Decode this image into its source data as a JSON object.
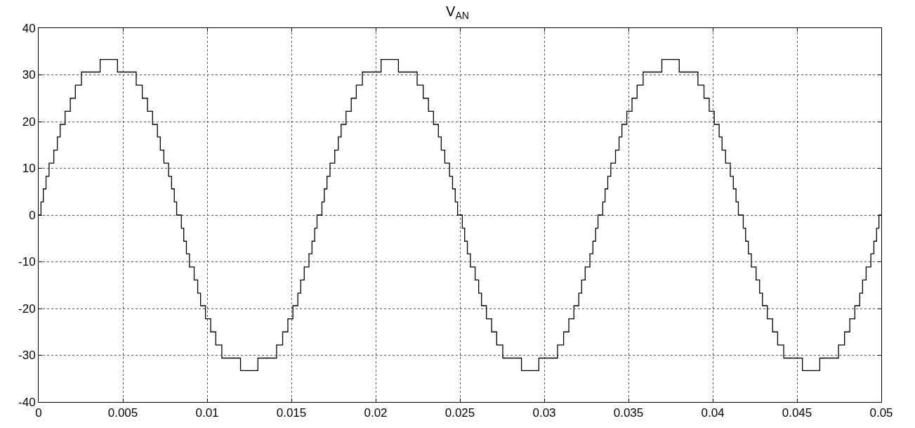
{
  "chart_data": {
    "type": "step",
    "title": "V$_{AN}$",
    "x": [
      0,
      0.00014,
      0.00028,
      0.00044,
      0.00062,
      0.0009,
      0.00111,
      0.00128,
      0.00157,
      0.00188,
      0.00218,
      0.00254,
      0.00365,
      0.00468,
      0.00579,
      0.00615,
      0.00646,
      0.00676,
      0.00705,
      0.00722,
      0.00743,
      0.00771,
      0.00789,
      0.00805,
      0.00819,
      0.00847,
      0.00861,
      0.00877,
      0.00895,
      0.00923,
      0.00944,
      0.00961,
      0.0099,
      0.01021,
      0.01051,
      0.01087,
      0.01198,
      0.01301,
      0.01412,
      0.01448,
      0.01479,
      0.01509,
      0.01538,
      0.01555,
      0.01576,
      0.01604,
      0.01622,
      0.01638,
      0.01652,
      0.01681,
      0.01695,
      0.01711,
      0.01729,
      0.01757,
      0.01778,
      0.01795,
      0.01824,
      0.01855,
      0.01885,
      0.01921,
      0.02032,
      0.02135,
      0.02246,
      0.02282,
      0.02313,
      0.02343,
      0.02372,
      0.02389,
      0.0241,
      0.02438,
      0.02456,
      0.02472,
      0.02486,
      0.02514,
      0.02528,
      0.02544,
      0.02562,
      0.0259,
      0.02611,
      0.02628,
      0.02657,
      0.02688,
      0.02718,
      0.02754,
      0.02865,
      0.02968,
      0.03079,
      0.03115,
      0.03146,
      0.03176,
      0.03205,
      0.03222,
      0.03243,
      0.03271,
      0.03289,
      0.03305,
      0.03319,
      0.03347,
      0.03361,
      0.03377,
      0.03395,
      0.03423,
      0.03444,
      0.03461,
      0.0349,
      0.03521,
      0.03551,
      0.03587,
      0.03698,
      0.03801,
      0.03912,
      0.03948,
      0.03979,
      0.04009,
      0.04038,
      0.04055,
      0.04076,
      0.04104,
      0.04122,
      0.04138,
      0.04152,
      0.04181,
      0.04195,
      0.04211,
      0.04229,
      0.04257,
      0.04278,
      0.04295,
      0.04324,
      0.04355,
      0.04385,
      0.04421,
      0.04532,
      0.04635,
      0.04746,
      0.04782,
      0.04813,
      0.04843,
      0.04872,
      0.04889,
      0.0491,
      0.04938,
      0.04956,
      0.04972,
      0.04986,
      0.05
    ],
    "series": [
      {
        "color": "#000000",
        "values": [
          0,
          2.8,
          5.6,
          8.3,
          11.1,
          13.9,
          16.7,
          19.4,
          22.2,
          25,
          27.8,
          30.6,
          33.3,
          30.6,
          27.8,
          25,
          22.2,
          19.4,
          16.7,
          13.9,
          11.1,
          8.3,
          5.6,
          2.8,
          0,
          -2.8,
          -5.6,
          -8.3,
          -11.1,
          -13.9,
          -16.7,
          -19.4,
          -22.2,
          -25,
          -27.8,
          -30.6,
          -33.3,
          -30.6,
          -27.8,
          -25,
          -22.2,
          -19.4,
          -16.7,
          -13.9,
          -11.1,
          -8.3,
          -5.6,
          -2.8,
          0,
          2.8,
          5.6,
          8.3,
          11.1,
          13.9,
          16.7,
          19.4,
          22.2,
          25,
          27.8,
          30.6,
          33.3,
          30.6,
          27.8,
          25,
          22.2,
          19.4,
          16.7,
          13.9,
          11.1,
          8.3,
          5.6,
          2.8,
          0,
          -2.8,
          -5.6,
          -8.3,
          -11.1,
          -13.9,
          -16.7,
          -19.4,
          -22.2,
          -25,
          -27.8,
          -30.6,
          -33.3,
          -30.6,
          -27.8,
          -25,
          -22.2,
          -19.4,
          -16.7,
          -13.9,
          -11.1,
          -8.3,
          -5.6,
          -2.8,
          0,
          2.8,
          5.6,
          8.3,
          11.1,
          13.9,
          16.7,
          19.4,
          22.2,
          25,
          27.8,
          30.6,
          33.3,
          30.6,
          27.8,
          25,
          22.2,
          19.4,
          16.7,
          13.9,
          11.1,
          8.3,
          5.6,
          2.8,
          0,
          -2.8,
          -5.6,
          -8.3,
          -11.1,
          -13.9,
          -16.7,
          -19.4,
          -22.2,
          -25,
          -27.8,
          -30.6,
          -33.3,
          -30.6,
          -27.8,
          -25,
          -22.2,
          -19.4,
          -16.7,
          -13.9,
          -11.1,
          -8.3,
          -5.6,
          -2.8,
          0,
          0
        ]
      }
    ],
    "xlim": [
      0,
      0.05
    ],
    "xticks": [
      0,
      0.005,
      0.01,
      0.015,
      0.02,
      0.025,
      0.03,
      0.035,
      0.04,
      0.045,
      0.05
    ],
    "ylim": [
      -40,
      40
    ],
    "yticks": [
      -40,
      -30,
      -20,
      -10,
      0,
      10,
      20,
      30,
      40
    ],
    "grid": true,
    "line_style": "solid",
    "marker": "none"
  }
}
